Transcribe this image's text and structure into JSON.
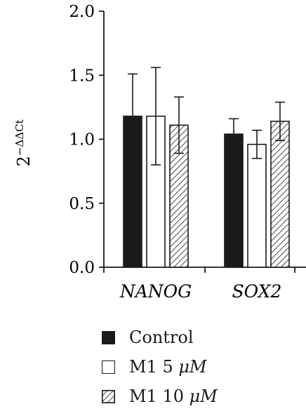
{
  "chart_data": {
    "type": "bar",
    "categories": [
      "NANOG",
      "SOX2"
    ],
    "series": [
      {
        "name": "Control",
        "values": [
          1.18,
          1.04
        ],
        "errors": [
          0.33,
          0.12
        ],
        "fill": "#1a1a1a"
      },
      {
        "name": "M1 5 μM",
        "values": [
          1.18,
          0.96
        ],
        "errors": [
          0.38,
          0.11
        ],
        "fill": "#ffffff"
      },
      {
        "name": "M1 10 μM",
        "values": [
          1.11,
          1.14
        ],
        "errors": [
          0.22,
          0.15
        ],
        "fill": "hatch"
      }
    ],
    "ylabel": "2",
    "ylabel_sup": "−ΔΔCt",
    "ylim": [
      0,
      2.0
    ],
    "yticks": [
      "0.0",
      "0.5",
      "1.0",
      "1.5",
      "2.0"
    ],
    "legend_position": "bottom"
  },
  "legend": {
    "items": [
      {
        "prefix": "Control",
        "unit": ""
      },
      {
        "prefix": "M1 5 ",
        "unit": "μM"
      },
      {
        "prefix": "M1 10 ",
        "unit": "μM"
      }
    ]
  }
}
